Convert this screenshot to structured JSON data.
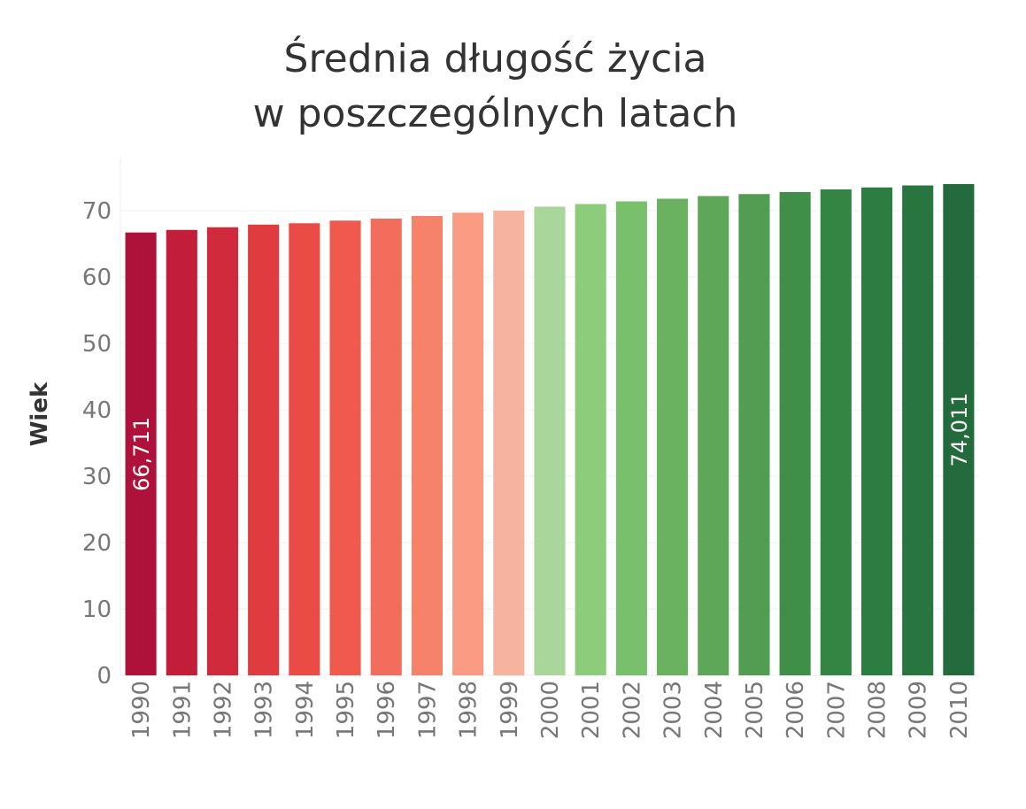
{
  "chart_data": {
    "type": "bar",
    "title_lines": [
      "Średnia długość życia",
      "w poszczególnych latach"
    ],
    "ylabel": "Wiek",
    "xlabel": "",
    "ylim": [
      0,
      78
    ],
    "yticks": [
      0,
      10,
      20,
      30,
      40,
      50,
      60,
      70
    ],
    "grid": true,
    "categories": [
      "1990",
      "1991",
      "1992",
      "1993",
      "1994",
      "1995",
      "1996",
      "1997",
      "1998",
      "1999",
      "2000",
      "2001",
      "2002",
      "2003",
      "2004",
      "2005",
      "2006",
      "2007",
      "2008",
      "2009",
      "2010"
    ],
    "values": [
      66.711,
      67.1,
      67.5,
      67.9,
      68.1,
      68.5,
      68.8,
      69.2,
      69.7,
      70.0,
      70.6,
      71.0,
      71.4,
      71.8,
      72.2,
      72.5,
      72.8,
      73.2,
      73.5,
      73.8,
      74.011
    ],
    "colors": [
      "#ae123a",
      "#c21e3a",
      "#d12a3c",
      "#e03b3f",
      "#ea4b45",
      "#ef5a4d",
      "#f26d5b",
      "#f6826a",
      "#fa9c84",
      "#f6b3a0",
      "#a9d69b",
      "#8ccc7b",
      "#78c06c",
      "#6ab260",
      "#5ea758",
      "#519e52",
      "#3f8f49",
      "#348443",
      "#2d7d42",
      "#287540",
      "#236b3d"
    ],
    "data_labels": [
      {
        "index": 0,
        "text": "66,711"
      },
      {
        "index": 20,
        "text": "74,011"
      }
    ]
  }
}
